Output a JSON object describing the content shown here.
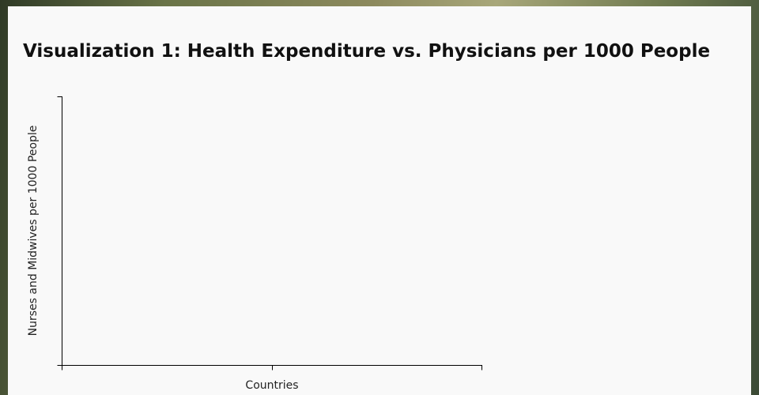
{
  "page": {
    "title": "Visualization 1: Health Expenditure vs. Physicians per 1000 People",
    "chart": {
      "x_label": "Countries",
      "y_label": "Nurses and Midwives per 1000 People"
    }
  }
}
